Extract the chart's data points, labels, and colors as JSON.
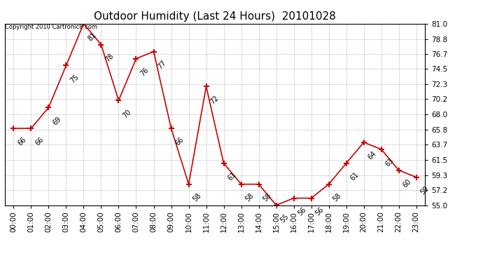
{
  "title": "Outdoor Humidity (Last 24 Hours)  20101028",
  "copyright_text": "Copyright 2010 Cartronic8.com",
  "x_labels": [
    "00:00",
    "01:00",
    "02:00",
    "03:00",
    "04:00",
    "05:00",
    "06:00",
    "07:00",
    "08:00",
    "09:00",
    "10:00",
    "11:00",
    "12:00",
    "13:00",
    "14:00",
    "15:00",
    "16:00",
    "17:00",
    "18:00",
    "19:00",
    "20:00",
    "21:00",
    "22:00",
    "23:00"
  ],
  "y_values": [
    66,
    66,
    69,
    75,
    81,
    78,
    70,
    76,
    77,
    66,
    58,
    72,
    61,
    58,
    58,
    55,
    56,
    56,
    58,
    61,
    64,
    63,
    60,
    59
  ],
  "y_labels": [
    81.0,
    78.8,
    76.7,
    74.5,
    72.3,
    70.2,
    68.0,
    65.8,
    63.7,
    61.5,
    59.3,
    57.2,
    55.0
  ],
  "ylim": [
    55.0,
    81.0
  ],
  "line_color": "#cc0000",
  "marker_color": "#cc0000",
  "grid_color": "#bbbbbb",
  "bg_color": "#ffffff",
  "title_fontsize": 11,
  "label_fontsize": 7,
  "tick_fontsize": 7.5
}
